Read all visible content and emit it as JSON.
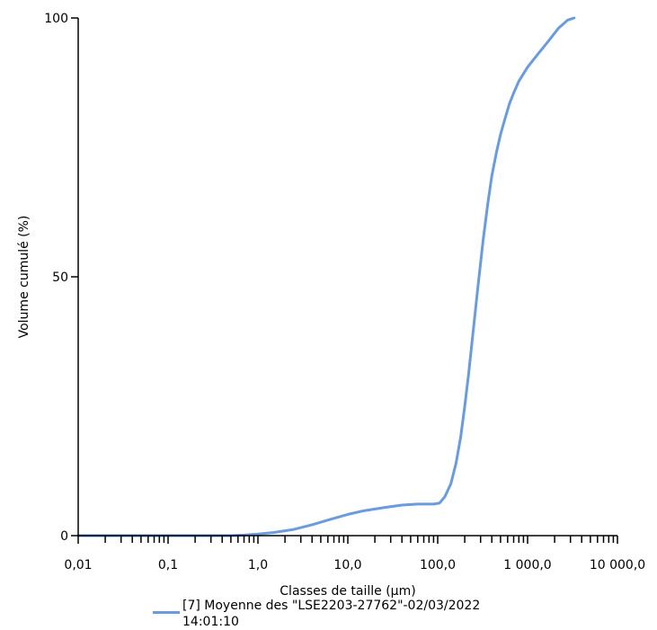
{
  "chart_data": {
    "type": "line",
    "xscale": "log",
    "xlim": [
      0.01,
      10000
    ],
    "ylim": [
      0,
      100
    ],
    "xlabel": "Classes de taille (µm)",
    "ylabel": "Volume cumulé (%)",
    "xticks": [
      {
        "value": 0.01,
        "label": "0,01"
      },
      {
        "value": 0.1,
        "label": "0,1"
      },
      {
        "value": 1,
        "label": "1,0"
      },
      {
        "value": 10,
        "label": "10,0"
      },
      {
        "value": 100,
        "label": "100,0"
      },
      {
        "value": 1000,
        "label": "1 000,0"
      },
      {
        "value": 10000,
        "label": "10 000,0"
      }
    ],
    "yticks": [
      {
        "value": 0,
        "label": "0"
      },
      {
        "value": 50,
        "label": "50"
      },
      {
        "value": 100,
        "label": "100"
      }
    ],
    "grid": false,
    "legend_position": "bottom",
    "series": [
      {
        "name": "[7] Moyenne des \"LSE2203-27762\"-02/03/2022 14:01:10",
        "color": "#6a9bdc",
        "x": [
          0.01,
          0.1,
          0.5,
          0.7,
          1.0,
          1.5,
          2.5,
          4.0,
          6.0,
          10,
          15,
          25,
          40,
          60,
          90,
          105,
          120,
          140,
          160,
          180,
          200,
          220,
          250,
          280,
          320,
          360,
          400,
          450,
          500,
          560,
          630,
          700,
          800,
          1000,
          1300,
          1700,
          2200,
          2800,
          3300
        ],
        "y": [
          0,
          0,
          0,
          0.1,
          0.3,
          0.6,
          1.2,
          2.1,
          3.0,
          4.1,
          4.8,
          5.4,
          5.9,
          6.1,
          6.1,
          6.3,
          7.5,
          10.0,
          14.0,
          19.0,
          25.0,
          31.0,
          40.0,
          48.0,
          57.0,
          64.0,
          69.5,
          74.0,
          77.5,
          80.5,
          83.5,
          85.5,
          87.8,
          90.5,
          93.0,
          95.5,
          98.0,
          99.6,
          100
        ]
      }
    ]
  }
}
